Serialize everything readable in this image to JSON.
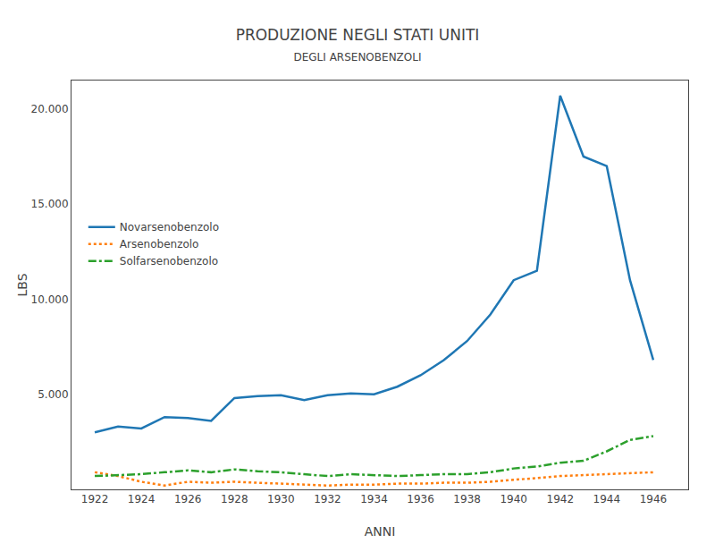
{
  "chart_data": {
    "type": "line",
    "title": "PRODUZIONE NEGLI STATI UNITI",
    "subtitle": "DEGLI ARSENOBENZOLI",
    "x_label": "ANNI",
    "y_label": "LBS",
    "x": [
      1922,
      1923,
      1924,
      1925,
      1926,
      1927,
      1928,
      1929,
      1930,
      1931,
      1932,
      1933,
      1934,
      1935,
      1936,
      1937,
      1938,
      1939,
      1940,
      1941,
      1942,
      1943,
      1944,
      1945,
      1946
    ],
    "series": [
      {
        "name": "Novarsenobenzolo",
        "line_style": "solid",
        "values": [
          3000,
          3300,
          3200,
          3800,
          3750,
          3600,
          4800,
          4900,
          4950,
          4700,
          4950,
          5050,
          5000,
          5400,
          6000,
          6800,
          7800,
          9200,
          11000,
          11500,
          20700,
          17500,
          17000,
          11000,
          6800
        ]
      },
      {
        "name": "Arsenobenzolo",
        "line_style": "dotted",
        "values": [
          900,
          700,
          400,
          200,
          400,
          350,
          400,
          350,
          300,
          250,
          200,
          250,
          250,
          300,
          300,
          350,
          350,
          400,
          500,
          600,
          700,
          750,
          800,
          850,
          900
        ]
      },
      {
        "name": "Solfarsenobenzolo",
        "line_style": "dashdot",
        "values": [
          700,
          750,
          800,
          900,
          1000,
          900,
          1050,
          950,
          900,
          800,
          700,
          800,
          750,
          700,
          750,
          800,
          800,
          900,
          1100,
          1200,
          1400,
          1500,
          2000,
          2600,
          2800
        ]
      }
    ],
    "xlim": [
      1921,
      1947.5
    ],
    "xticks": [
      1922,
      1924,
      1926,
      1928,
      1930,
      1932,
      1934,
      1936,
      1938,
      1940,
      1942,
      1944,
      1946
    ],
    "ylim": [
      0,
      21500
    ],
    "yticks": [
      {
        "value": 5000,
        "label": "5.000"
      },
      {
        "value": 10000,
        "label": "10.000"
      },
      {
        "value": 15000,
        "label": "15.000"
      },
      {
        "value": 20000,
        "label": "20.000"
      }
    ],
    "grid": false,
    "legend": "left"
  }
}
